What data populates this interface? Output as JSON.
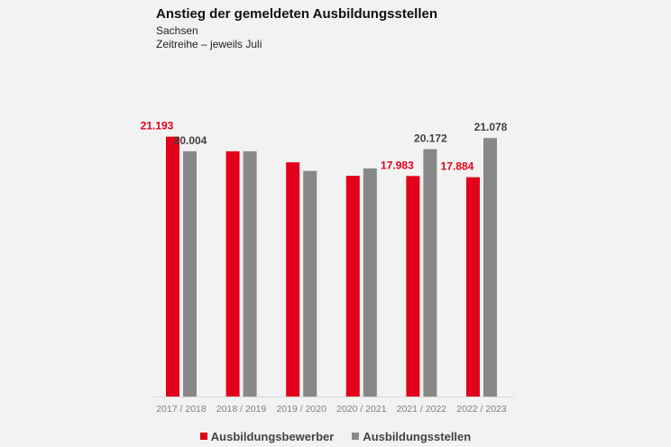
{
  "chart_data": {
    "type": "bar",
    "title": "Anstieg der gemeldeten Ausbildungsstellen",
    "subtitle": [
      "Sachsen",
      "Zeitreihe – jeweils Juli"
    ],
    "categories": [
      "2017 / 2018",
      "2018 / 2019",
      "2019 / 2020",
      "2020 / 2021",
      "2021 / 2022",
      "2022 / 2023"
    ],
    "series": [
      {
        "name": "Ausbildungsbewerber",
        "color": "#e2001a",
        "values": [
          21193,
          20000,
          19100,
          18000,
          17983,
          17884
        ],
        "labels": [
          "21.193",
          "",
          "",
          "",
          "17.983",
          "17.884"
        ]
      },
      {
        "name": "Ausbildungsstellen",
        "color": "#888888",
        "values": [
          20004,
          20000,
          18400,
          18600,
          20172,
          21078
        ],
        "labels": [
          "20.004",
          "",
          "",
          "",
          "20.172",
          "21.078"
        ]
      }
    ],
    "ylim": [
      0,
      28000
    ],
    "grid": false,
    "legend": "bottom"
  }
}
